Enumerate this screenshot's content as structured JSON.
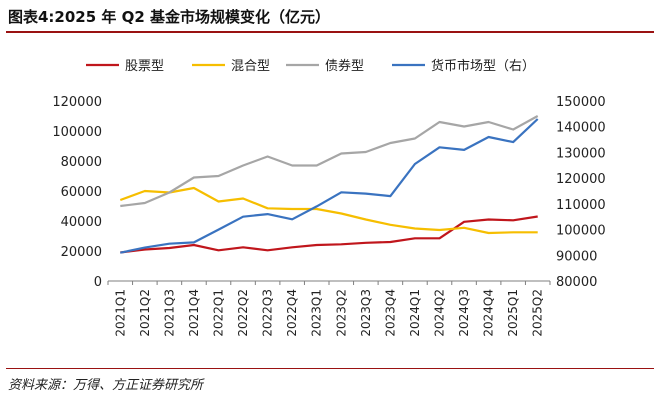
{
  "title": "图表4:2025 年 Q2 基金市场规模变化（亿元）",
  "source": "资料来源：万得、方正证券研究所",
  "chart_data": {
    "type": "line",
    "categories": [
      "2021Q1",
      "2021Q2",
      "2021Q3",
      "2021Q4",
      "2022Q1",
      "2022Q2",
      "2022Q3",
      "2022Q4",
      "2023Q1",
      "2023Q2",
      "2023Q3",
      "2023Q4",
      "2024Q1",
      "2024Q2",
      "2024Q3",
      "2024Q4",
      "2025Q1",
      "2025Q2"
    ],
    "ylim_left": [
      0,
      120000
    ],
    "yticks_left": [
      0,
      20000,
      40000,
      60000,
      80000,
      100000,
      120000
    ],
    "ylim_right": [
      80000,
      150000
    ],
    "yticks_right": [
      80000,
      90000,
      100000,
      110000,
      120000,
      130000,
      140000,
      150000
    ],
    "legend_position": "top",
    "grid": false,
    "series": [
      {
        "name": "股票型",
        "axis": "left",
        "color": "#c0161c",
        "values": [
          19000,
          21000,
          22000,
          24000,
          20500,
          22500,
          20500,
          22500,
          24000,
          24500,
          25500,
          26000,
          28500,
          28500,
          39500,
          41000,
          40500,
          43000
        ]
      },
      {
        "name": "混合型",
        "axis": "left",
        "color": "#f6be00",
        "values": [
          54000,
          60000,
          59000,
          62000,
          53000,
          55000,
          48500,
          48000,
          48000,
          45000,
          41000,
          37500,
          35000,
          34000,
          35500,
          32000,
          32500,
          32500
        ]
      },
      {
        "name": "债券型",
        "axis": "left",
        "color": "#a6a6a6",
        "values": [
          50000,
          52000,
          59000,
          69000,
          70000,
          77000,
          83000,
          77000,
          77000,
          85000,
          86000,
          92000,
          95000,
          106000,
          103000,
          106000,
          101000,
          110000
        ]
      },
      {
        "name": "货币市场型（右）",
        "axis": "right",
        "color": "#3a73c0",
        "values": [
          91000,
          93000,
          94500,
          95000,
          100000,
          105000,
          106000,
          104000,
          109000,
          114500,
          114000,
          113000,
          125500,
          132000,
          131000,
          136000,
          134000,
          143000
        ]
      }
    ]
  }
}
